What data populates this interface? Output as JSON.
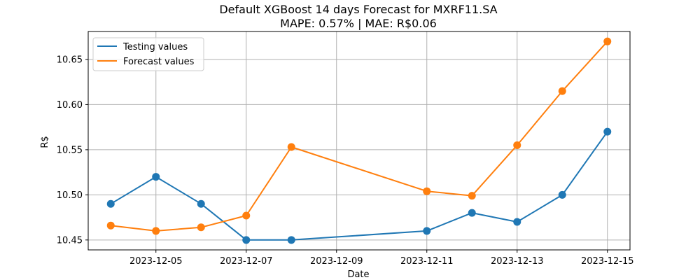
{
  "chart_data": {
    "type": "line",
    "title": "Default XGBoost 14 days Forecast for MXRF11.SA",
    "subtitle": "MAPE: 0.57% | MAE: R$0.06",
    "xlabel": "Date",
    "ylabel": "R$",
    "x_dates": [
      "2023-12-04",
      "2023-12-05",
      "2023-12-06",
      "2023-12-07",
      "2023-12-08",
      "2023-12-11",
      "2023-12-12",
      "2023-12-13",
      "2023-12-14",
      "2023-12-15"
    ],
    "x_ticks": [
      "2023-12-05",
      "2023-12-07",
      "2023-12-09",
      "2023-12-11",
      "2023-12-13",
      "2023-12-15"
    ],
    "y_ticks": [
      10.45,
      10.5,
      10.55,
      10.6,
      10.65
    ],
    "y_tick_labels": [
      "10.45",
      "10.50",
      "10.55",
      "10.60",
      "10.65"
    ],
    "xlim": [
      "2023-12-03.5",
      "2023-12-15.5"
    ],
    "ylim": [
      10.439,
      10.681
    ],
    "grid": true,
    "legend_position": "top-left",
    "series": [
      {
        "name": "Testing values",
        "color": "#1f77b4",
        "values": [
          10.49,
          10.52,
          10.49,
          10.45,
          10.45,
          10.46,
          10.48,
          10.47,
          10.5,
          10.57
        ]
      },
      {
        "name": "Forecast values",
        "color": "#ff7f0e",
        "values": [
          10.466,
          10.46,
          10.464,
          10.477,
          10.553,
          10.504,
          10.499,
          10.555,
          10.615,
          10.67
        ]
      }
    ]
  }
}
